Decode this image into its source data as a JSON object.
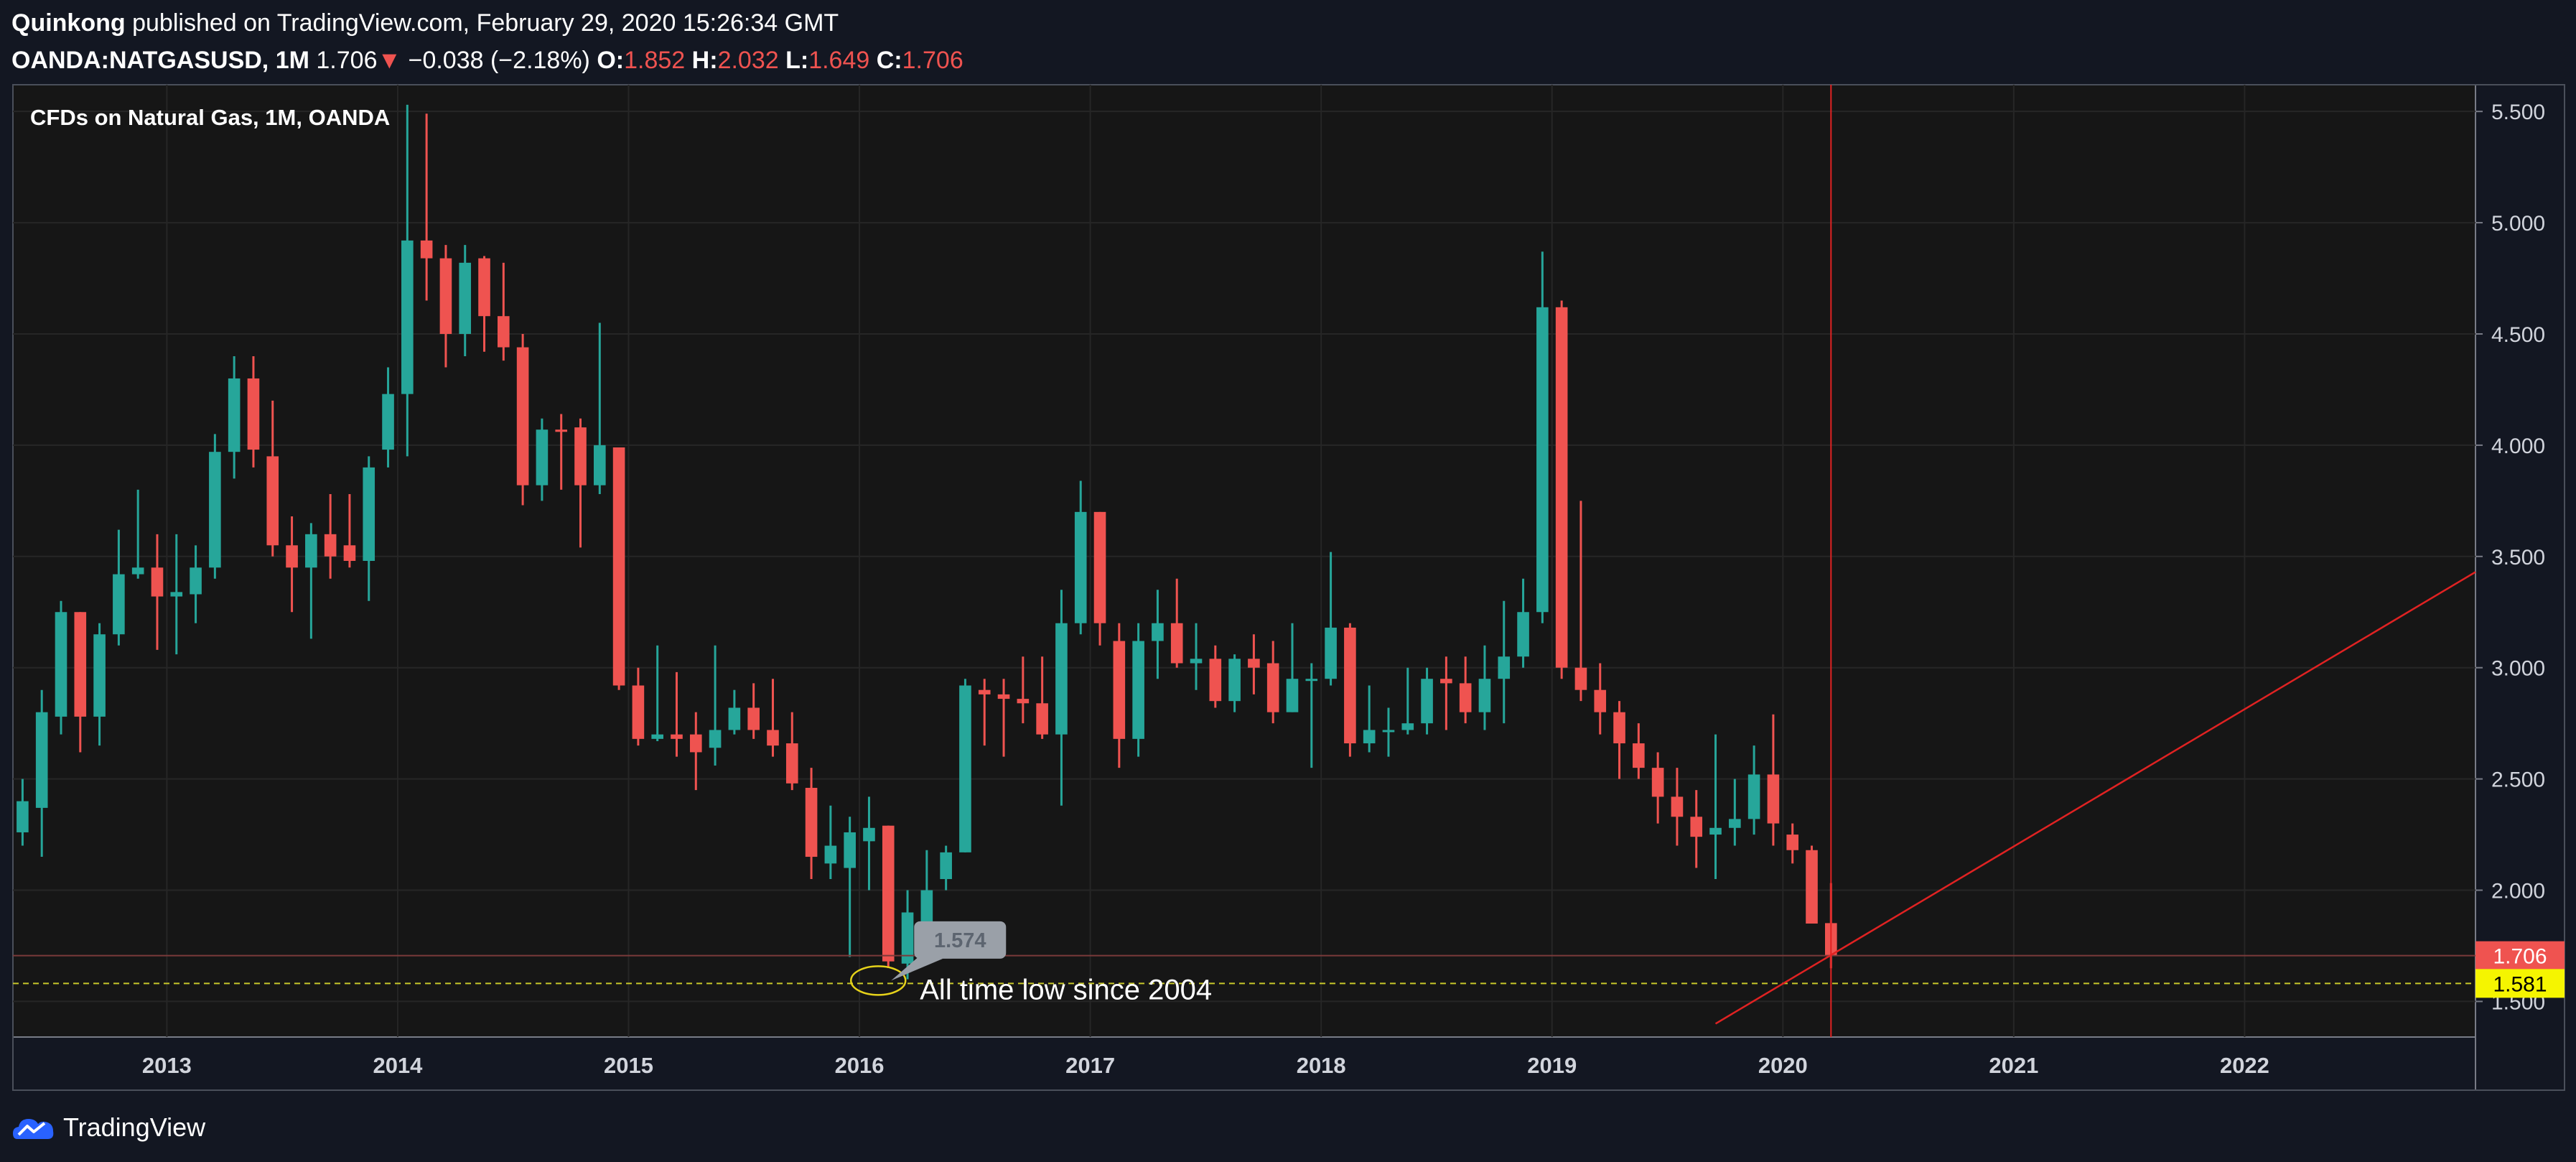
{
  "header": {
    "author": "Quinkong",
    "published": "published on TradingView.com, February 29, 2020 15:26:34 GMT",
    "symbol": "OANDA:NATGASUSD, 1M",
    "last": "1.706",
    "arrow": "▼",
    "change": "−0.038 (−2.18%)",
    "o_label": "O:",
    "o_value": "1.852",
    "h_label": "H:",
    "h_value": "2.032",
    "l_label": "L:",
    "l_value": "1.649",
    "c_label": "C:",
    "c_value": "1.706"
  },
  "chart_data": {
    "type": "candlestick",
    "title": "CFDs on Natural Gas, 1M, OANDA",
    "x_tick_labels": [
      "2013",
      "2014",
      "2015",
      "2016",
      "2017",
      "2018",
      "2019",
      "2020",
      "2021",
      "2022"
    ],
    "x_range": [
      "2012-05",
      "2022-12"
    ],
    "y_tick_labels": [
      "1.500",
      "2.000",
      "2.500",
      "3.000",
      "3.500",
      "4.000",
      "4.500",
      "5.000",
      "5.500"
    ],
    "ylim": [
      1.34,
      5.62
    ],
    "grid": true,
    "last_price_label": "1.706",
    "marker_price_label": "1.581",
    "marker_price": 1.581,
    "callout_value": "1.574",
    "annotation": "All time low since 2004",
    "candles": [
      {
        "t": "2012-05",
        "o": 2.26,
        "h": 2.5,
        "l": 2.2,
        "c": 2.4
      },
      {
        "t": "2012-06",
        "o": 2.37,
        "h": 2.9,
        "l": 2.15,
        "c": 2.8
      },
      {
        "t": "2012-07",
        "o": 2.78,
        "h": 3.3,
        "l": 2.7,
        "c": 3.25
      },
      {
        "t": "2012-08",
        "o": 3.25,
        "h": 3.25,
        "l": 2.62,
        "c": 2.78
      },
      {
        "t": "2012-09",
        "o": 2.78,
        "h": 3.2,
        "l": 2.65,
        "c": 3.15
      },
      {
        "t": "2012-10",
        "o": 3.15,
        "h": 3.62,
        "l": 3.1,
        "c": 3.42
      },
      {
        "t": "2012-11",
        "o": 3.42,
        "h": 3.8,
        "l": 3.4,
        "c": 3.45
      },
      {
        "t": "2012-12",
        "o": 3.45,
        "h": 3.6,
        "l": 3.08,
        "c": 3.32
      },
      {
        "t": "2013-01",
        "o": 3.32,
        "h": 3.6,
        "l": 3.06,
        "c": 3.34
      },
      {
        "t": "2013-02",
        "o": 3.33,
        "h": 3.55,
        "l": 3.2,
        "c": 3.45
      },
      {
        "t": "2013-03",
        "o": 3.45,
        "h": 4.05,
        "l": 3.4,
        "c": 3.97
      },
      {
        "t": "2013-04",
        "o": 3.97,
        "h": 4.4,
        "l": 3.85,
        "c": 4.3
      },
      {
        "t": "2013-05",
        "o": 4.3,
        "h": 4.4,
        "l": 3.9,
        "c": 3.98
      },
      {
        "t": "2013-06",
        "o": 3.95,
        "h": 4.2,
        "l": 3.5,
        "c": 3.55
      },
      {
        "t": "2013-07",
        "o": 3.55,
        "h": 3.68,
        "l": 3.25,
        "c": 3.45
      },
      {
        "t": "2013-08",
        "o": 3.45,
        "h": 3.65,
        "l": 3.13,
        "c": 3.6
      },
      {
        "t": "2013-09",
        "o": 3.6,
        "h": 3.78,
        "l": 3.4,
        "c": 3.5
      },
      {
        "t": "2013-10",
        "o": 3.55,
        "h": 3.78,
        "l": 3.45,
        "c": 3.48
      },
      {
        "t": "2013-11",
        "o": 3.48,
        "h": 3.95,
        "l": 3.3,
        "c": 3.9
      },
      {
        "t": "2013-12",
        "o": 3.98,
        "h": 4.35,
        "l": 3.9,
        "c": 4.23
      },
      {
        "t": "2014-01",
        "o": 4.23,
        "h": 5.53,
        "l": 3.95,
        "c": 4.92
      },
      {
        "t": "2014-02",
        "o": 4.92,
        "h": 5.49,
        "l": 4.65,
        "c": 4.84
      },
      {
        "t": "2014-03",
        "o": 4.84,
        "h": 4.9,
        "l": 4.35,
        "c": 4.5
      },
      {
        "t": "2014-04",
        "o": 4.5,
        "h": 4.9,
        "l": 4.4,
        "c": 4.82
      },
      {
        "t": "2014-05",
        "o": 4.84,
        "h": 4.85,
        "l": 4.42,
        "c": 4.58
      },
      {
        "t": "2014-06",
        "o": 4.58,
        "h": 4.82,
        "l": 4.38,
        "c": 4.44
      },
      {
        "t": "2014-07",
        "o": 4.44,
        "h": 4.5,
        "l": 3.73,
        "c": 3.82
      },
      {
        "t": "2014-08",
        "o": 3.82,
        "h": 4.12,
        "l": 3.75,
        "c": 4.07
      },
      {
        "t": "2014-09",
        "o": 4.07,
        "h": 4.14,
        "l": 3.8,
        "c": 4.06
      },
      {
        "t": "2014-10",
        "o": 4.08,
        "h": 4.12,
        "l": 3.54,
        "c": 3.82
      },
      {
        "t": "2014-11",
        "o": 3.82,
        "h": 4.55,
        "l": 3.78,
        "c": 4.0
      },
      {
        "t": "2014-12",
        "o": 3.99,
        "h": 3.99,
        "l": 2.9,
        "c": 2.92
      },
      {
        "t": "2015-01",
        "o": 2.92,
        "h": 3.0,
        "l": 2.65,
        "c": 2.68
      },
      {
        "t": "2015-02",
        "o": 2.68,
        "h": 3.1,
        "l": 2.67,
        "c": 2.7
      },
      {
        "t": "2015-03",
        "o": 2.7,
        "h": 2.98,
        "l": 2.6,
        "c": 2.68
      },
      {
        "t": "2015-04",
        "o": 2.7,
        "h": 2.8,
        "l": 2.45,
        "c": 2.62
      },
      {
        "t": "2015-05",
        "o": 2.64,
        "h": 3.1,
        "l": 2.56,
        "c": 2.72
      },
      {
        "t": "2015-06",
        "o": 2.72,
        "h": 2.9,
        "l": 2.7,
        "c": 2.82
      },
      {
        "t": "2015-07",
        "o": 2.82,
        "h": 2.93,
        "l": 2.68,
        "c": 2.72
      },
      {
        "t": "2015-08",
        "o": 2.72,
        "h": 2.95,
        "l": 2.6,
        "c": 2.65
      },
      {
        "t": "2015-09",
        "o": 2.66,
        "h": 2.8,
        "l": 2.45,
        "c": 2.48
      },
      {
        "t": "2015-10",
        "o": 2.46,
        "h": 2.55,
        "l": 2.05,
        "c": 2.15
      },
      {
        "t": "2015-11",
        "o": 2.12,
        "h": 2.38,
        "l": 2.05,
        "c": 2.2
      },
      {
        "t": "2015-12",
        "o": 2.1,
        "h": 2.33,
        "l": 1.7,
        "c": 2.26
      },
      {
        "t": "2016-01",
        "o": 2.22,
        "h": 2.42,
        "l": 2.0,
        "c": 2.28
      },
      {
        "t": "2016-02",
        "o": 2.29,
        "h": 2.29,
        "l": 1.65,
        "c": 1.68
      },
      {
        "t": "2016-03",
        "o": 1.67,
        "h": 2.0,
        "l": 1.6,
        "c": 1.9
      },
      {
        "t": "2016-04",
        "o": 1.85,
        "h": 2.18,
        "l": 1.83,
        "c": 2.0
      },
      {
        "t": "2016-05",
        "o": 2.05,
        "h": 2.2,
        "l": 2.0,
        "c": 2.17
      },
      {
        "t": "2016-06",
        "o": 2.17,
        "h": 2.95,
        "l": 2.17,
        "c": 2.92
      },
      {
        "t": "2016-07",
        "o": 2.9,
        "h": 2.95,
        "l": 2.65,
        "c": 2.88
      },
      {
        "t": "2016-08",
        "o": 2.88,
        "h": 2.95,
        "l": 2.6,
        "c": 2.86
      },
      {
        "t": "2016-09",
        "o": 2.86,
        "h": 3.05,
        "l": 2.75,
        "c": 2.84
      },
      {
        "t": "2016-10",
        "o": 2.84,
        "h": 3.05,
        "l": 2.68,
        "c": 2.7
      },
      {
        "t": "2016-11",
        "o": 2.7,
        "h": 3.35,
        "l": 2.38,
        "c": 3.2
      },
      {
        "t": "2016-12",
        "o": 3.2,
        "h": 3.84,
        "l": 3.15,
        "c": 3.7
      },
      {
        "t": "2017-01",
        "o": 3.7,
        "h": 3.7,
        "l": 3.1,
        "c": 3.2
      },
      {
        "t": "2017-02",
        "o": 3.12,
        "h": 3.2,
        "l": 2.55,
        "c": 2.68
      },
      {
        "t": "2017-03",
        "o": 2.68,
        "h": 3.2,
        "l": 2.6,
        "c": 3.12
      },
      {
        "t": "2017-04",
        "o": 3.12,
        "h": 3.35,
        "l": 2.95,
        "c": 3.2
      },
      {
        "t": "2017-05",
        "o": 3.2,
        "h": 3.4,
        "l": 3.0,
        "c": 3.02
      },
      {
        "t": "2017-06",
        "o": 3.02,
        "h": 3.2,
        "l": 2.9,
        "c": 3.04
      },
      {
        "t": "2017-07",
        "o": 3.04,
        "h": 3.1,
        "l": 2.82,
        "c": 2.85
      },
      {
        "t": "2017-08",
        "o": 2.85,
        "h": 3.06,
        "l": 2.8,
        "c": 3.04
      },
      {
        "t": "2017-09",
        "o": 3.04,
        "h": 3.15,
        "l": 2.88,
        "c": 3.0
      },
      {
        "t": "2017-10",
        "o": 3.02,
        "h": 3.12,
        "l": 2.75,
        "c": 2.8
      },
      {
        "t": "2017-11",
        "o": 2.8,
        "h": 3.2,
        "l": 2.8,
        "c": 2.95
      },
      {
        "t": "2017-12",
        "o": 2.95,
        "h": 3.02,
        "l": 2.55,
        "c": 2.95
      },
      {
        "t": "2018-01",
        "o": 2.95,
        "h": 3.52,
        "l": 2.92,
        "c": 3.18
      },
      {
        "t": "2018-02",
        "o": 3.18,
        "h": 3.2,
        "l": 2.6,
        "c": 2.66
      },
      {
        "t": "2018-03",
        "o": 2.66,
        "h": 2.92,
        "l": 2.62,
        "c": 2.72
      },
      {
        "t": "2018-04",
        "o": 2.72,
        "h": 2.82,
        "l": 2.6,
        "c": 2.72
      },
      {
        "t": "2018-05",
        "o": 2.72,
        "h": 3.0,
        "l": 2.7,
        "c": 2.75
      },
      {
        "t": "2018-06",
        "o": 2.75,
        "h": 3.0,
        "l": 2.7,
        "c": 2.95
      },
      {
        "t": "2018-07",
        "o": 2.95,
        "h": 3.05,
        "l": 2.72,
        "c": 2.93
      },
      {
        "t": "2018-08",
        "o": 2.93,
        "h": 3.05,
        "l": 2.75,
        "c": 2.8
      },
      {
        "t": "2018-09",
        "o": 2.8,
        "h": 3.1,
        "l": 2.72,
        "c": 2.95
      },
      {
        "t": "2018-10",
        "o": 2.95,
        "h": 3.3,
        "l": 2.75,
        "c": 3.05
      },
      {
        "t": "2018-11",
        "o": 3.05,
        "h": 3.4,
        "l": 3.0,
        "c": 3.25
      },
      {
        "t": "2018-12",
        "o": 3.25,
        "h": 4.87,
        "l": 3.2,
        "c": 4.62
      },
      {
        "t": "2019-01",
        "o": 4.62,
        "h": 4.65,
        "l": 2.95,
        "c": 3.0
      },
      {
        "t": "2019-02",
        "o": 3.0,
        "h": 3.75,
        "l": 2.85,
        "c": 2.9
      },
      {
        "t": "2019-03",
        "o": 2.9,
        "h": 3.02,
        "l": 2.7,
        "c": 2.8
      },
      {
        "t": "2019-04",
        "o": 2.8,
        "h": 2.85,
        "l": 2.5,
        "c": 2.66
      },
      {
        "t": "2019-05",
        "o": 2.66,
        "h": 2.75,
        "l": 2.5,
        "c": 2.55
      },
      {
        "t": "2019-06",
        "o": 2.55,
        "h": 2.62,
        "l": 2.3,
        "c": 2.42
      },
      {
        "t": "2019-07",
        "o": 2.42,
        "h": 2.55,
        "l": 2.2,
        "c": 2.33
      },
      {
        "t": "2019-08",
        "o": 2.33,
        "h": 2.45,
        "l": 2.1,
        "c": 2.24
      },
      {
        "t": "2019-09",
        "o": 2.25,
        "h": 2.7,
        "l": 2.05,
        "c": 2.28
      },
      {
        "t": "2019-10",
        "o": 2.28,
        "h": 2.5,
        "l": 2.2,
        "c": 2.32
      },
      {
        "t": "2019-11",
        "o": 2.32,
        "h": 2.65,
        "l": 2.25,
        "c": 2.52
      },
      {
        "t": "2019-12",
        "o": 2.52,
        "h": 2.79,
        "l": 2.2,
        "c": 2.3
      },
      {
        "t": "2020-01",
        "o": 2.25,
        "h": 2.3,
        "l": 2.12,
        "c": 2.18
      },
      {
        "t": "2020-02",
        "o": 2.18,
        "h": 2.2,
        "l": 1.85,
        "c": 1.85
      },
      {
        "t": "2020-03",
        "o": 1.852,
        "h": 2.032,
        "l": 1.649,
        "c": 1.706
      }
    ],
    "vertical_line": "2020-03",
    "trendline": [
      {
        "t": "2019-09",
        "p": 1.4
      },
      {
        "t": "2022-12",
        "p": 3.43
      }
    ]
  },
  "colors": {
    "background": "#131722",
    "plot_background": "#161616",
    "up": "#26a69a",
    "down": "#ef5350",
    "grid": "#262626",
    "axis_text": "#d1d4dc",
    "marker_line": "#c8c82a",
    "marker_badge": "#f5f500",
    "trend": "#e02222"
  },
  "footer": {
    "logo_text": "TradingView",
    "logo_icon": "tradingview-cloud-icon"
  }
}
